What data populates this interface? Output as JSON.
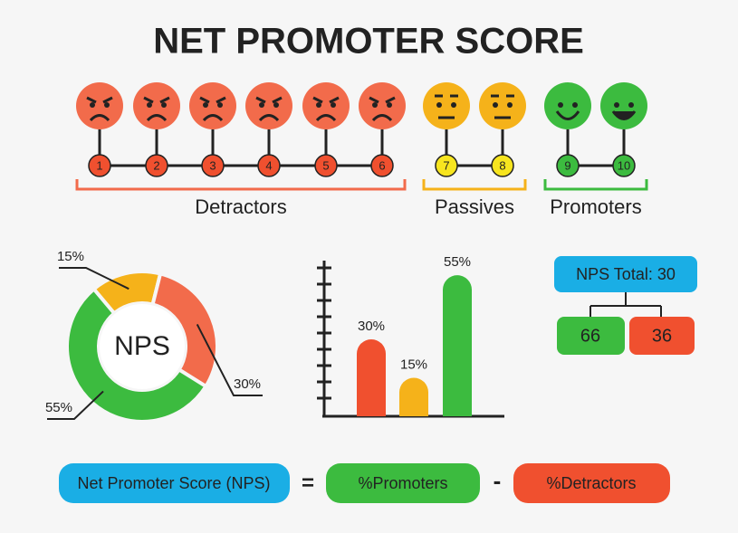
{
  "title": "NET PROMOTER SCORE",
  "scale": {
    "groups": [
      {
        "label": "Detractors",
        "scores": [
          1,
          2,
          3,
          4,
          5,
          6
        ]
      },
      {
        "label": "Passives",
        "scores": [
          7,
          8
        ]
      },
      {
        "label": "Promoters",
        "scores": [
          9,
          10
        ]
      }
    ]
  },
  "chart_data": [
    {
      "type": "pie",
      "center_label": "NPS",
      "values": [
        15,
        30,
        55
      ],
      "value_labels": [
        "15%",
        "30%",
        "55%"
      ],
      "colors": [
        "#f5b21a",
        "#f26b4b",
        "#3cbb3f"
      ]
    },
    {
      "type": "bar",
      "values": [
        30,
        15,
        55
      ],
      "value_labels": [
        "30%",
        "15%",
        "55%"
      ],
      "colors": [
        "#f0502f",
        "#f5b21a",
        "#3cbb3f"
      ],
      "ylim": [
        0,
        60
      ]
    }
  ],
  "nps_total": {
    "label": "NPS Total: 30",
    "promoters": "66",
    "detractors": "36"
  },
  "formula": {
    "left": "Net Promoter Score (NPS)",
    "equals": "=",
    "promoters": "%Promoters",
    "minus": "-",
    "detractors": "%Detractors"
  }
}
